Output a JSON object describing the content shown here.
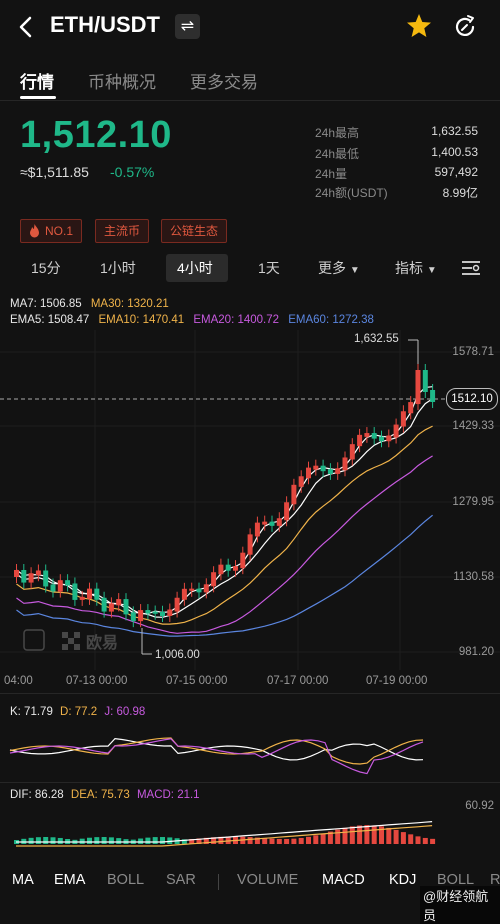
{
  "header": {
    "pair": "ETH/USDT",
    "swap_glyph": "⇌"
  },
  "tabs": [
    "行情",
    "币种概况",
    "更多交易"
  ],
  "price": {
    "last": "1,512.10",
    "usd": "≈$1,511.85",
    "change": "-0.57%"
  },
  "stats": [
    {
      "label": "24h最高",
      "value": "1,632.55"
    },
    {
      "label": "24h最低",
      "value": "1,400.53"
    },
    {
      "label": "24h量",
      "value": "597,492"
    },
    {
      "label": "24h额(USDT)",
      "value": "8.99亿"
    }
  ],
  "tags": [
    "NO.1",
    "主流币",
    "公链生态"
  ],
  "intervals": [
    "15分",
    "1小时",
    "4小时",
    "1天",
    "更多",
    "指标"
  ],
  "ma_row1": {
    "ma7": "MA7: 1506.85",
    "ma30": "MA30: 1320.21"
  },
  "ema_row": {
    "ema5": "EMA5: 1508.47",
    "ema10": "EMA10: 1470.41",
    "ema20": "EMA20: 1400.72",
    "ema60": "EMA60: 1272.38"
  },
  "chart": {
    "high_label": "1,632.55",
    "low_label": "1,006.00",
    "current": "1512.10",
    "y_ticks": [
      "1578.71",
      "1429.33",
      "1279.95",
      "1130.58",
      "981.20"
    ],
    "x_ticks": [
      "04:00",
      "07-13 00:00",
      "07-15 00:00",
      "07-17 00:00",
      "07-19 00:00"
    ],
    "watermark": "欧易",
    "colors": {
      "up": "#e5483f",
      "down": "#1fb889",
      "ma7": "#ffffff",
      "ma30": "#f0b34a",
      "ema20": "#c75adf",
      "ema60": "#5b86e0"
    }
  },
  "kdj": {
    "k": "K: 71.79",
    "d": "D: 77.2",
    "j": "J: 60.98"
  },
  "macd": {
    "dif": "DIF: 86.28",
    "dea": "DEA: 75.73",
    "macd": "MACD: 21.1",
    "y_label": "60.92"
  },
  "bottom_tabs": [
    "MA",
    "EMA",
    "BOLL",
    "SAR",
    "VOLUME",
    "MACD",
    "KDJ",
    "BOLL",
    "R"
  ],
  "bottom_active": [
    "MA",
    "EMA",
    "MACD",
    "KDJ"
  ],
  "watermark_author": "@财经领航员"
}
